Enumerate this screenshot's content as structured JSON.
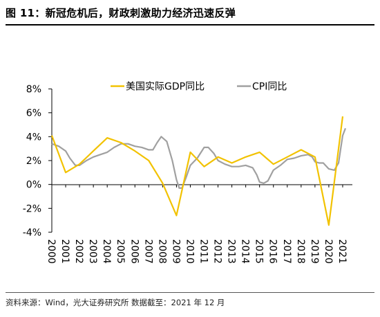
{
  "page": {
    "title": "图 11：新冠危机后，财政刺激助力经济迅速反弹",
    "source": "资料来源：Wind，光大证券研究所  数据截至：2021 年 12 月"
  },
  "chart_data": {
    "type": "line",
    "title": "图 11：新冠危机后，财政刺激助力经济迅速反弹",
    "xlabel": "",
    "ylabel": "",
    "x": [
      "2000",
      "2001",
      "2002",
      "2003",
      "2004",
      "2005",
      "2006",
      "2007",
      "2008",
      "2009",
      "2010",
      "2011",
      "2012",
      "2013",
      "2014",
      "2015",
      "2016",
      "2017",
      "2018",
      "2019",
      "2020",
      "2021"
    ],
    "y_ticks": [
      "8%",
      "6%",
      "4%",
      "2%",
      "0%",
      "-2%",
      "-4%"
    ],
    "ylim": [
      -4,
      8
    ],
    "grid": false,
    "legend": "top",
    "series": [
      {
        "name": "美国实际GDP同比",
        "color": "#F2C200",
        "points": [
          [
            2000.0,
            4.1
          ],
          [
            2001.0,
            1.0
          ],
          [
            2002.0,
            1.7
          ],
          [
            2003.0,
            2.8
          ],
          [
            2004.0,
            3.9
          ],
          [
            2005.0,
            3.5
          ],
          [
            2006.0,
            2.8
          ],
          [
            2007.0,
            2.0
          ],
          [
            2008.0,
            0.1
          ],
          [
            2009.0,
            -2.6
          ],
          [
            2010.0,
            2.7
          ],
          [
            2011.0,
            1.5
          ],
          [
            2012.0,
            2.3
          ],
          [
            2013.0,
            1.8
          ],
          [
            2014.0,
            2.3
          ],
          [
            2015.0,
            2.7
          ],
          [
            2016.0,
            1.7
          ],
          [
            2017.0,
            2.3
          ],
          [
            2018.0,
            2.9
          ],
          [
            2019.0,
            2.3
          ],
          [
            2020.0,
            -3.4
          ],
          [
            2021.0,
            5.7
          ]
        ]
      },
      {
        "name": "CPI同比",
        "color": "#A0A0A0",
        "points": [
          [
            2000.0,
            3.4
          ],
          [
            2000.5,
            3.2
          ],
          [
            2001.0,
            2.8
          ],
          [
            2001.3,
            2.2
          ],
          [
            2001.7,
            1.6
          ],
          [
            2002.0,
            1.6
          ],
          [
            2002.5,
            2.0
          ],
          [
            2003.0,
            2.3
          ],
          [
            2003.5,
            2.5
          ],
          [
            2004.0,
            2.7
          ],
          [
            2004.5,
            3.1
          ],
          [
            2005.0,
            3.4
          ],
          [
            2005.5,
            3.4
          ],
          [
            2006.0,
            3.2
          ],
          [
            2006.5,
            3.1
          ],
          [
            2007.0,
            2.9
          ],
          [
            2007.3,
            2.9
          ],
          [
            2007.6,
            3.5
          ],
          [
            2007.9,
            4.0
          ],
          [
            2008.3,
            3.6
          ],
          [
            2008.7,
            2.0
          ],
          [
            2009.0,
            0.4
          ],
          [
            2009.2,
            -0.3
          ],
          [
            2009.4,
            -0.3
          ],
          [
            2009.7,
            0.6
          ],
          [
            2010.0,
            1.6
          ],
          [
            2010.5,
            2.2
          ],
          [
            2011.0,
            3.1
          ],
          [
            2011.3,
            3.1
          ],
          [
            2011.7,
            2.6
          ],
          [
            2012.0,
            2.0
          ],
          [
            2012.5,
            1.7
          ],
          [
            2013.0,
            1.5
          ],
          [
            2013.5,
            1.5
          ],
          [
            2014.0,
            1.6
          ],
          [
            2014.5,
            1.4
          ],
          [
            2014.8,
            0.8
          ],
          [
            2015.0,
            0.2
          ],
          [
            2015.3,
            0.1
          ],
          [
            2015.6,
            0.3
          ],
          [
            2016.0,
            1.2
          ],
          [
            2016.5,
            1.6
          ],
          [
            2017.0,
            2.1
          ],
          [
            2017.5,
            2.2
          ],
          [
            2018.0,
            2.4
          ],
          [
            2018.5,
            2.5
          ],
          [
            2018.8,
            2.3
          ],
          [
            2019.0,
            1.9
          ],
          [
            2019.3,
            1.8
          ],
          [
            2019.6,
            1.8
          ],
          [
            2020.0,
            1.3
          ],
          [
            2020.4,
            1.2
          ],
          [
            2020.7,
            1.8
          ],
          [
            2021.0,
            4.1
          ],
          [
            2021.2,
            4.7
          ]
        ]
      }
    ]
  }
}
